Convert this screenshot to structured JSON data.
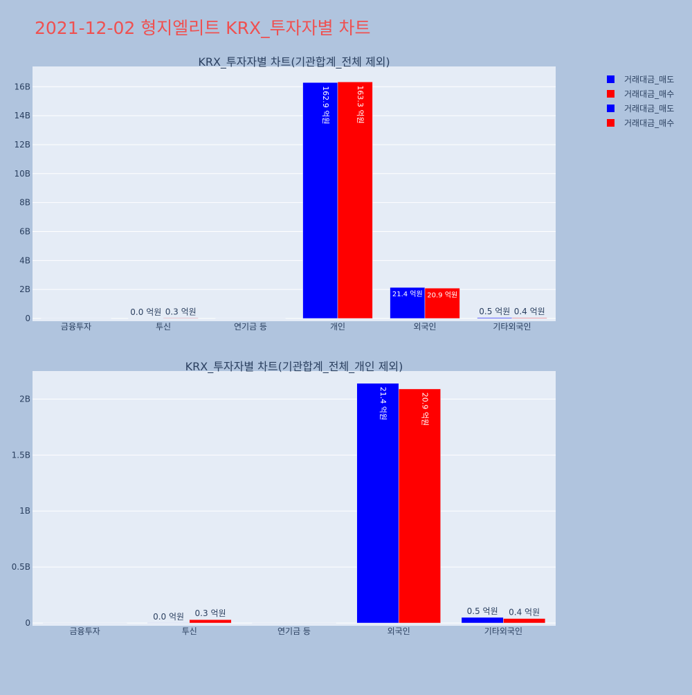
{
  "page_title": "2021-12-02 형지엘리트 KRX_투자자별 차트",
  "colors": {
    "page_bg": "#b0c4de",
    "plot_bg": "#e5ecf6",
    "title": "#ef5050",
    "text": "#2a3f5f",
    "sell": "#0000ff",
    "buy": "#ff0000"
  },
  "legend": {
    "placement": "top-right",
    "entries": [
      {
        "name": "거래대금_매도",
        "color": "#0000ff"
      },
      {
        "name": "거래대금_매수",
        "color": "#ff0000"
      },
      {
        "name": "거래대금_매도",
        "color": "#0000ff"
      },
      {
        "name": "거래대금_매수",
        "color": "#ff0000"
      }
    ]
  },
  "chart_data": [
    {
      "type": "bar",
      "title": "KRX_투자자별 차트(기관합계_전체 제외)",
      "categories": [
        "금융투자",
        "투신",
        "연기금 등",
        "개인",
        "외국인",
        "기타외국인"
      ],
      "series": [
        {
          "name": "거래대금_매도",
          "color": "#0000ff",
          "values": [
            0,
            1000000,
            0,
            16290000000,
            2140000000,
            50000000
          ],
          "labels": [
            "",
            "0.0 억원",
            "",
            "162.9 억원",
            "21.4 억원",
            "0.5 억원"
          ]
        },
        {
          "name": "거래대금_매수",
          "color": "#ff0000",
          "values": [
            0,
            30000000,
            0,
            16330000000,
            2090000000,
            40000000
          ],
          "labels": [
            "",
            "0.3 억원",
            "",
            "163.3 억원",
            "20.9 억원",
            "0.4 억원"
          ]
        }
      ],
      "ylim": [
        0,
        17400000000
      ],
      "yticks": [
        0,
        2000000000,
        4000000000,
        6000000000,
        8000000000,
        10000000000,
        12000000000,
        14000000000,
        16000000000
      ],
      "ytick_labels": [
        "0",
        "2B",
        "4B",
        "6B",
        "8B",
        "10B",
        "12B",
        "14B",
        "16B"
      ],
      "grid": true
    },
    {
      "type": "bar",
      "title": "KRX_투자자별 차트(기관합계_전체_개인 제외)",
      "categories": [
        "금융투자",
        "투신",
        "연기금 등",
        "외국인",
        "기타외국인"
      ],
      "series": [
        {
          "name": "거래대금_매도",
          "color": "#0000ff",
          "values": [
            0,
            1000000,
            0,
            2140000000,
            50000000
          ],
          "labels": [
            "",
            "0.0 억원",
            "",
            "21.4 억원",
            "0.5 억원"
          ]
        },
        {
          "name": "거래대금_매수",
          "color": "#ff0000",
          "values": [
            0,
            30000000,
            0,
            2090000000,
            40000000
          ],
          "labels": [
            "",
            "0.3 억원",
            "",
            "20.9 억원",
            "0.4 억원"
          ]
        }
      ],
      "ylim": [
        0,
        2250000000
      ],
      "yticks": [
        0,
        500000000,
        1000000000,
        1500000000,
        2000000000
      ],
      "ytick_labels": [
        "0",
        "0.5B",
        "1B",
        "1.5B",
        "2B"
      ],
      "grid": true
    }
  ]
}
